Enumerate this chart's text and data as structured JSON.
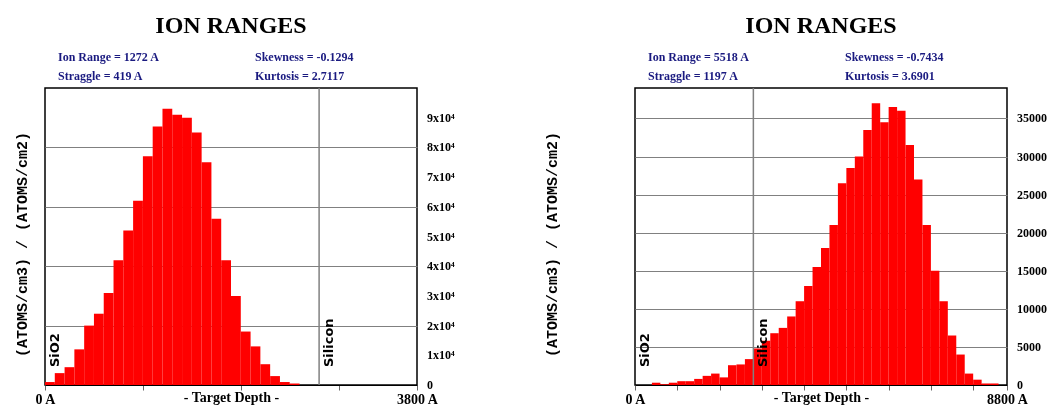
{
  "chart_data": [
    {
      "type": "histogram",
      "title": "ION RANGES",
      "xlabel": "- Target Depth -",
      "ylabel": "(ATOMS/cm3) / (ATOMS/cm2)",
      "bins": [
        0,
        100,
        200,
        300,
        400,
        500,
        600,
        700,
        800,
        900,
        1000,
        1100,
        1200,
        1300,
        1400,
        1500,
        1600,
        1700,
        1800,
        1900,
        2000,
        2100,
        2200,
        2300,
        2400,
        2500,
        2600,
        2700,
        2800,
        2900,
        3000,
        3100,
        3200,
        3300,
        3400,
        3500,
        3600,
        3700,
        3800
      ],
      "values": [
        1000,
        4000,
        6000,
        12000,
        20000,
        24000,
        31000,
        42000,
        52000,
        62000,
        77000,
        87000,
        93000,
        91000,
        90000,
        85000,
        75000,
        56000,
        42000,
        30000,
        18000,
        13000,
        7000,
        3000,
        1000,
        500,
        0,
        0,
        0,
        0,
        0,
        0,
        0,
        0,
        0,
        0,
        0,
        0
      ],
      "color": "#ff0000",
      "xlim": [
        0,
        3800
      ],
      "ylim": [
        0,
        100000
      ],
      "xticks": [
        {
          "value": 0,
          "label": "0 A"
        },
        {
          "value": 1000,
          "label": null
        },
        {
          "value": 2000,
          "label": null
        },
        {
          "value": 3000,
          "label": null
        },
        {
          "value": 3800,
          "label": "3800 A"
        }
      ],
      "yticks": [
        0,
        {
          "value": 10000,
          "label": "1x10⁴"
        },
        {
          "value": 20000,
          "label": "2x10⁴"
        },
        {
          "value": 30000,
          "label": "3x10⁴"
        },
        {
          "value": 40000,
          "label": "4x10⁴"
        },
        {
          "value": 50000,
          "label": "5x10⁴"
        },
        {
          "value": 60000,
          "label": "6x10⁴"
        },
        {
          "value": 70000,
          "label": "7x10⁴"
        },
        {
          "value": 80000,
          "label": "8x10⁴"
        },
        {
          "value": 90000,
          "label": "9x10⁴"
        }
      ],
      "grid": "y",
      "ref_lines": [
        {
          "axis": "x",
          "value": 2800,
          "label": "Silicon",
          "color": "#808080"
        }
      ],
      "annotations": [
        "Ion Range = 1272 A",
        "Skewness = -0.1294",
        "Straggle = 419 A",
        "Kurtosis = 2.7117",
        "SiO2"
      ]
    },
    {
      "type": "histogram",
      "title": "ION RANGES",
      "xlabel": "- Target Depth -",
      "ylabel": "(ATOMS/cm3) / (ATOMS/cm2)",
      "bins": [
        0,
        200,
        400,
        600,
        800,
        1000,
        1200,
        1400,
        1600,
        1800,
        2000,
        2200,
        2400,
        2600,
        2800,
        3000,
        3200,
        3400,
        3600,
        3800,
        4000,
        4200,
        4400,
        4600,
        4800,
        5000,
        5200,
        5400,
        5600,
        5800,
        6000,
        6200,
        6400,
        6600,
        6800,
        7000,
        7200,
        7400,
        7600,
        7800,
        8000,
        8200,
        8400,
        8600,
        8800
      ],
      "values": [
        0,
        0,
        300,
        100,
        300,
        500,
        500,
        800,
        1200,
        1500,
        1000,
        2600,
        2700,
        3400,
        4800,
        5800,
        6800,
        7500,
        9000,
        11000,
        13000,
        15500,
        18000,
        21000,
        26500,
        28500,
        30000,
        33500,
        37000,
        34500,
        36500,
        36000,
        31500,
        27000,
        21000,
        15000,
        11000,
        6500,
        4000,
        1500,
        700,
        200,
        200,
        0
      ],
      "color": "#ff0000",
      "xlim": [
        0,
        8800
      ],
      "ylim": [
        0,
        39000
      ],
      "xticks": [
        {
          "value": 0,
          "label": "0 A"
        },
        {
          "value": 1000,
          "label": null
        },
        {
          "value": 2000,
          "label": null
        },
        {
          "value": 3000,
          "label": null
        },
        {
          "value": 4000,
          "label": null
        },
        {
          "value": 5000,
          "label": null
        },
        {
          "value": 6000,
          "label": null
        },
        {
          "value": 7000,
          "label": null
        },
        {
          "value": 8000,
          "label": null
        },
        {
          "value": 8800,
          "label": "8800 A"
        }
      ],
      "yticks": [
        0,
        5000,
        10000,
        15000,
        20000,
        25000,
        30000,
        35000
      ],
      "grid": "y",
      "ref_lines": [
        {
          "axis": "x",
          "value": 2800,
          "label": "Silicon",
          "color": "#808080"
        }
      ],
      "annotations": [
        "Ion Range = 5518 A",
        "Skewness = -0.7434",
        "Straggle = 1197 A",
        "Kurtosis = 3.6901",
        "SiO2"
      ]
    }
  ]
}
